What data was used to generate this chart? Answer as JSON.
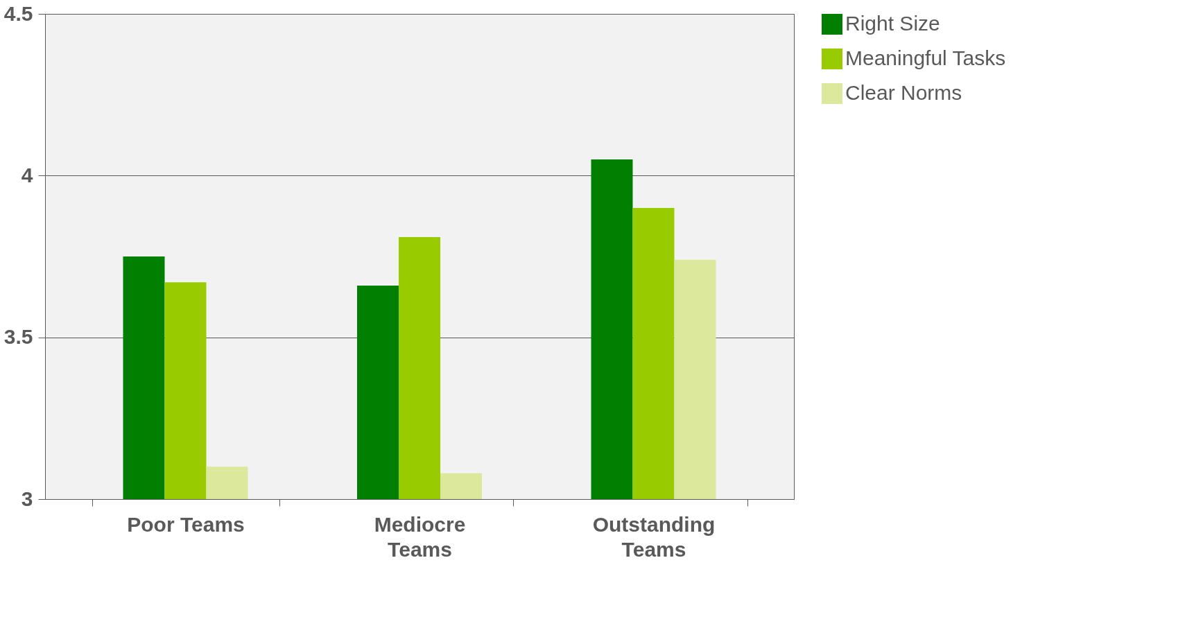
{
  "chart_data": {
    "type": "bar",
    "categories": [
      "Poor Teams",
      "Mediocre Teams",
      "Outstanding Teams"
    ],
    "series": [
      {
        "name": "Right Size",
        "color": "#007f00",
        "values": [
          3.75,
          3.66,
          4.05
        ]
      },
      {
        "name": "Meaningful Tasks",
        "color": "#99cc00",
        "values": [
          3.67,
          3.81,
          3.9
        ]
      },
      {
        "name": "Clear Norms",
        "color": "#dce89c",
        "values": [
          3.1,
          3.08,
          3.74
        ]
      }
    ],
    "ylim": [
      3,
      4.5
    ],
    "yticks": [
      3,
      3.5,
      4,
      4.5
    ],
    "grid": "y",
    "legend": "right"
  }
}
